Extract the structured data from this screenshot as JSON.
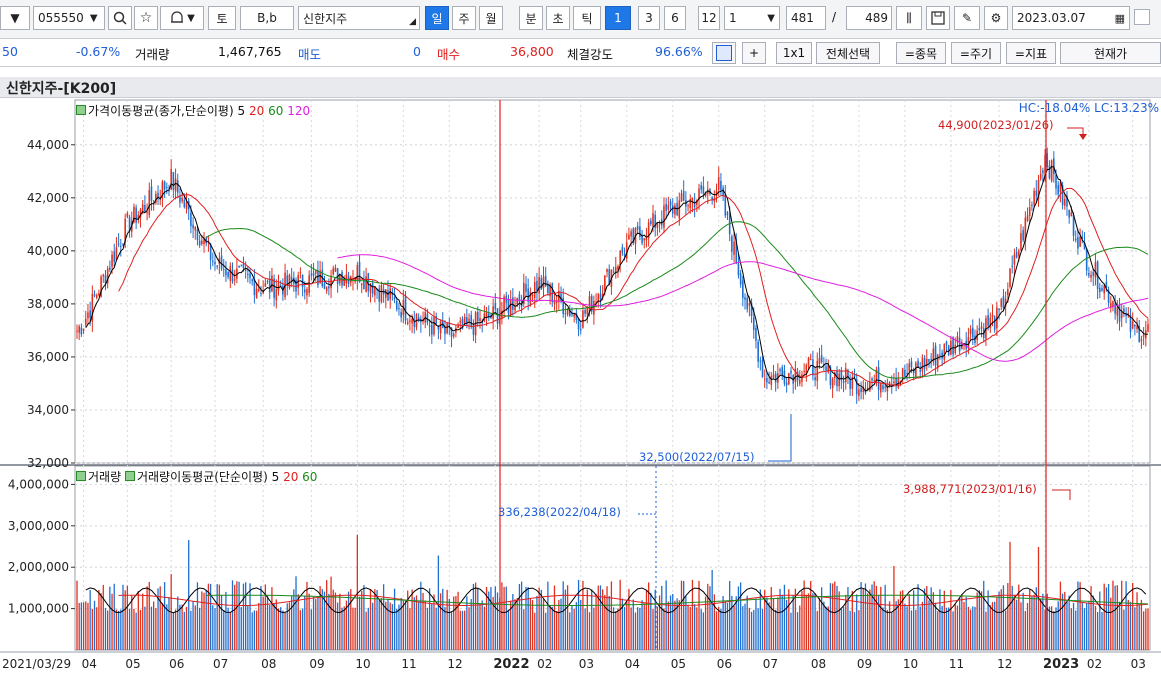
{
  "toolbar": {
    "code_value": "055550",
    "search_icon": "search-icon",
    "fav_icon": "star-icon",
    "alarm_icon": "bell-icon",
    "to_label": "토",
    "bb_label": "B,b",
    "stock_name": "신한지주",
    "period_tabs": [
      "일",
      "주",
      "월",
      "분",
      "초",
      "틱"
    ],
    "active_period": "일",
    "count_buttons": [
      "1",
      "3",
      "6",
      "12"
    ],
    "active_count": "1",
    "unit_select": "1",
    "range_start": "481",
    "range_sep": "/",
    "range_total": "489",
    "date_value": "2023.03.07"
  },
  "quote": {
    "price_partial": "50",
    "change_pct": "-0.67%",
    "volume_label": "거래량",
    "volume_value": "1,467,765",
    "sell_label": "매도",
    "sell_value": "0",
    "buy_label": "매수",
    "buy_value": "36,800",
    "strength_label": "체결강도",
    "strength_value": "96.66%",
    "plus_label": "+",
    "layout_label": "1x1",
    "select_all": "전체선택",
    "item_btn": "=종목",
    "period_btn": "=주기",
    "index_btn": "=지표",
    "current_btn": "현재가"
  },
  "chart": {
    "title": "신한지주-[K200]",
    "price_legend": "가격이동평균(종가,단순이평)",
    "price_ma": [
      "5",
      "20",
      "60",
      "120"
    ],
    "hc_lc": "HC:-18.04%  LC:13.23%",
    "vol_legend_1": "거래량",
    "vol_legend_2": "거래량이동평균(단순이평)",
    "vol_ma": [
      "5",
      "20",
      "60"
    ],
    "high_annot": "44,900(2023/01/26)",
    "low_annot": "32,500(2022/07/15)",
    "vol_high_annot": "3,988,771(2023/01/16)",
    "vol_mark_annot": "336,238(2022/04/18)",
    "price_ticks": [
      "44,000",
      "42,000",
      "40,000",
      "38,000",
      "36,000",
      "34,000",
      "32,000"
    ],
    "vol_ticks": [
      "4,000,000",
      "3,000,000",
      "2,000,000",
      "1,000,000"
    ],
    "x_labels": [
      "2021/03/29",
      "04",
      "05",
      "06",
      "07",
      "08",
      "09",
      "10",
      "11",
      "12",
      "2022",
      "02",
      "03",
      "04",
      "05",
      "06",
      "07",
      "08",
      "09",
      "10",
      "11",
      "12",
      "2023",
      "02",
      "03"
    ],
    "colors": {
      "up": "#e0301e",
      "down": "#1f6fd0",
      "ma5": "#000000",
      "ma20": "#e02020",
      "ma60": "#1a8a1a",
      "ma120": "#e020e0",
      "accent": "#1e78e8"
    }
  },
  "chart_data": {
    "type": "line",
    "title": "신한지주-[K200]",
    "xlabel": "",
    "ylabel": "",
    "ylim": [
      32000,
      45500
    ],
    "x": [
      "2021-03",
      "2021-04",
      "2021-05",
      "2021-06",
      "2021-07",
      "2021-08",
      "2021-09",
      "2021-10",
      "2021-11",
      "2021-12",
      "2022-01",
      "2022-02",
      "2022-03",
      "2022-04",
      "2022-05",
      "2022-06",
      "2022-07",
      "2022-08",
      "2022-09",
      "2022-10",
      "2022-11",
      "2022-12",
      "2023-01",
      "2023-02",
      "2023-03"
    ],
    "series": [
      {
        "name": "5",
        "values": [
          37000,
          37300,
          41000,
          42700,
          39500,
          38600,
          38900,
          39200,
          37800,
          36800,
          37600,
          38800,
          37400,
          40200,
          41600,
          42400,
          35200,
          35600,
          35000,
          35300,
          36400,
          37500,
          43600,
          39500,
          37000
        ]
      },
      {
        "name": "20",
        "values": [
          37200,
          37100,
          40000,
          42100,
          40300,
          38900,
          38900,
          39000,
          38300,
          37200,
          37400,
          38300,
          37800,
          39400,
          41200,
          42000,
          36600,
          35600,
          35200,
          35200,
          36100,
          37200,
          41000,
          41200,
          38200
        ]
      },
      {
        "name": "60",
        "values": [
          null,
          null,
          null,
          39200,
          40500,
          39600,
          39000,
          38700,
          38400,
          37900,
          37600,
          37700,
          37600,
          38300,
          39800,
          40800,
          38800,
          36400,
          35400,
          35300,
          35500,
          36200,
          37700,
          39400,
          39400
        ]
      },
      {
        "name": "120",
        "values": [
          null,
          null,
          null,
          null,
          null,
          null,
          39100,
          39200,
          38900,
          38400,
          38100,
          38000,
          38100,
          38400,
          39300,
          40000,
          39600,
          38600,
          37300,
          36700,
          36400,
          36200,
          36400,
          37000,
          37700
        ]
      }
    ]
  }
}
